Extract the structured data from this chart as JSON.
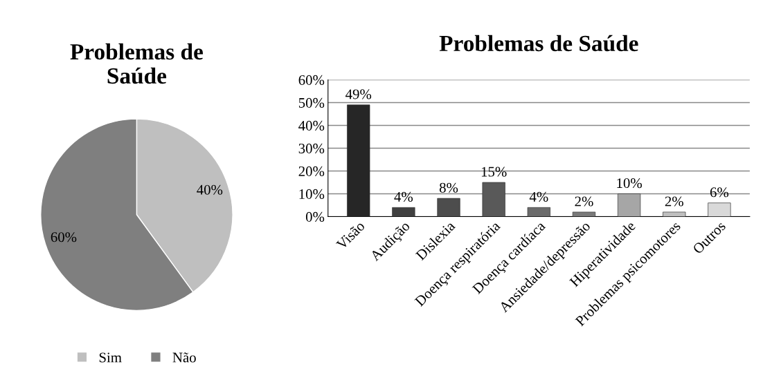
{
  "chart_data": [
    {
      "type": "pie",
      "title": "Problemas de\nSaúde",
      "categories": [
        "Sim",
        "Não"
      ],
      "values": [
        40,
        60
      ],
      "colors": [
        "#bfbfbf",
        "#7f7f7f"
      ],
      "value_labels": [
        "40%",
        "60%"
      ],
      "legend": "bottom"
    },
    {
      "type": "bar",
      "title": "Problemas de Saúde",
      "categories": [
        "Visão",
        "Audição",
        "Dislexia",
        "Doença respiratória",
        "Doença cardíaca",
        "Ansiedade/depressão",
        "Hiperatividade",
        "Problemas psicomotores",
        "Outros"
      ],
      "values": [
        49,
        4,
        8,
        15,
        4,
        2,
        10,
        2,
        6
      ],
      "colors": [
        "#262626",
        "#404040",
        "#4d4d4d",
        "#595959",
        "#6b6b6b",
        "#7a7a7a",
        "#a6a6a6",
        "#bfbfbf",
        "#d9d9d9"
      ],
      "value_labels": [
        "49%",
        "4%",
        "8%",
        "15%",
        "4%",
        "2%",
        "10%",
        "2%",
        "6%"
      ],
      "ylim": [
        0,
        60
      ],
      "yticks": [
        {
          "value": 0,
          "label": "0%"
        },
        {
          "value": 10,
          "label": "10%"
        },
        {
          "value": 20,
          "label": "20%"
        },
        {
          "value": 30,
          "label": "30%"
        },
        {
          "value": 40,
          "label": "40%"
        },
        {
          "value": 50,
          "label": "50%"
        },
        {
          "value": 60,
          "label": "60%"
        }
      ],
      "grid": "y",
      "legend": false
    }
  ]
}
